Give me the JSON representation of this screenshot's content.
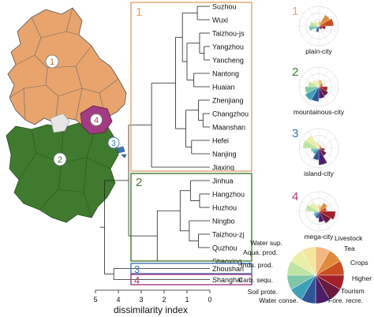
{
  "colors": {
    "plain": "#E8A46C",
    "mountainous": "#3F7A2E",
    "island": "#3F73B3",
    "mega": "#A33B82",
    "grey": "#e6e6e6",
    "line": "#222222"
  },
  "map": {
    "region_labels": [
      "1",
      "2",
      "3",
      "4"
    ]
  },
  "dendrogram": {
    "cities": [
      "Suzhou",
      "Wuxi",
      "Taizhou-js",
      "Yangzhou",
      "Yancheng",
      "Nantong",
      "Huaian",
      "Zhenjiang",
      "Changzhou",
      "Maanshan",
      "Hefei",
      "Nanjing",
      "Jiaxing",
      "Jinhua",
      "Hangzhou",
      "Huzhou",
      "Ningbo",
      "Taizhou-zj",
      "Quzhou",
      "Shaoxing",
      "Zhoushan",
      "Shanghai"
    ],
    "cluster_labels": [
      "1",
      "2",
      "3",
      "4"
    ],
    "axis": {
      "ticks": [
        "5",
        "4",
        "3",
        "2",
        "1",
        "0"
      ],
      "label": "dissimilarity index"
    }
  },
  "roses": {
    "titles": [
      "plain-city",
      "mountainous-city",
      "island-city",
      "mega-city"
    ],
    "numbers": [
      "1",
      "2",
      "3",
      "4"
    ]
  },
  "legend": {
    "items": [
      "Water sup.",
      "Aqua. prod.",
      "Indu. prod.",
      "Carb. sequ.",
      "Soil prote.",
      "Water conse.",
      "Livestock",
      "Tea",
      "Crops",
      "Higher edu.",
      "Tourism",
      "Fore. recre."
    ],
    "wedge_colors": [
      "#F2B880",
      "#E08A3E",
      "#C84E1F",
      "#A4212A",
      "#6B1A3D",
      "#4B1E6B",
      "#2F5597",
      "#3FA0B9",
      "#7FC7A7",
      "#BFE3A3",
      "#E9EFA8",
      "#F4E6A0"
    ]
  }
}
